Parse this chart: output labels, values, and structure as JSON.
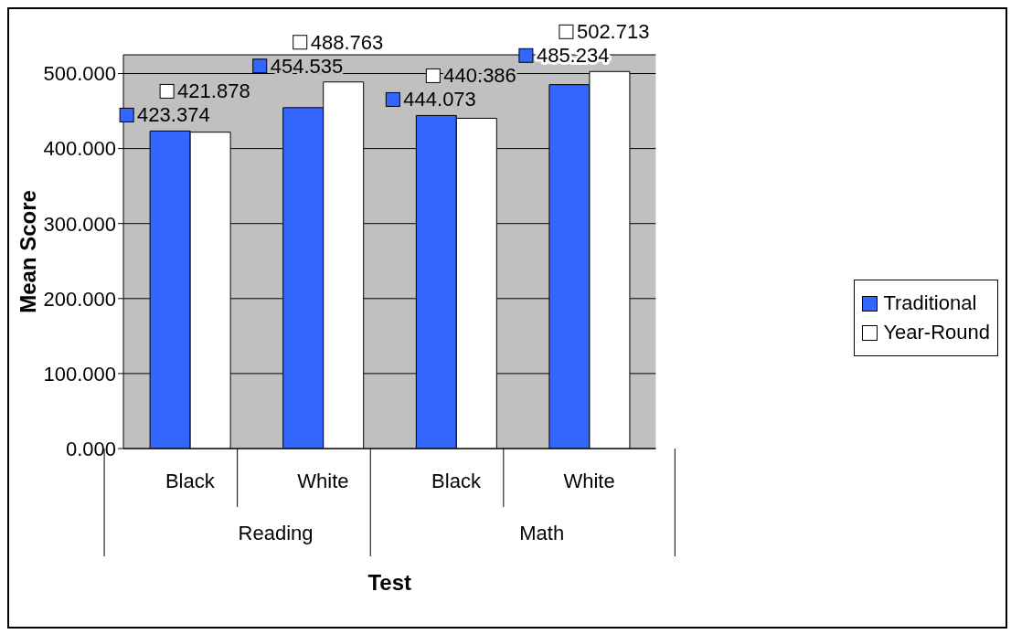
{
  "chart_data": {
    "type": "bar",
    "xlabel": "Test",
    "ylabel": "Mean Score",
    "categories": [
      "Black",
      "White",
      "Black",
      "White"
    ],
    "annotations": [
      "Reading",
      "Math"
    ],
    "series": [
      {
        "name": "Traditional",
        "color": "#3366ff",
        "values": [
          423.374,
          454.535,
          444.073,
          485.234
        ],
        "value_labels": [
          "423.374",
          "454.535",
          "444.073",
          "485.234"
        ]
      },
      {
        "name": "Year-Round",
        "color": "#ffffff",
        "values": [
          421.878,
          488.763,
          440.386,
          502.713
        ],
        "value_labels": [
          "421.878",
          "488.763",
          "440.386",
          "502.713"
        ]
      }
    ],
    "ylim": [
      0,
      525
    ],
    "yticks": [
      {
        "value": 0,
        "label": "0.000"
      },
      {
        "value": 100,
        "label": "100.000"
      },
      {
        "value": 200,
        "label": "200.000"
      },
      {
        "value": 300,
        "label": "300.000"
      },
      {
        "value": 400,
        "label": "400.000"
      },
      {
        "value": 500,
        "label": "500.000"
      }
    ],
    "grid": "y",
    "legend": "right"
  }
}
